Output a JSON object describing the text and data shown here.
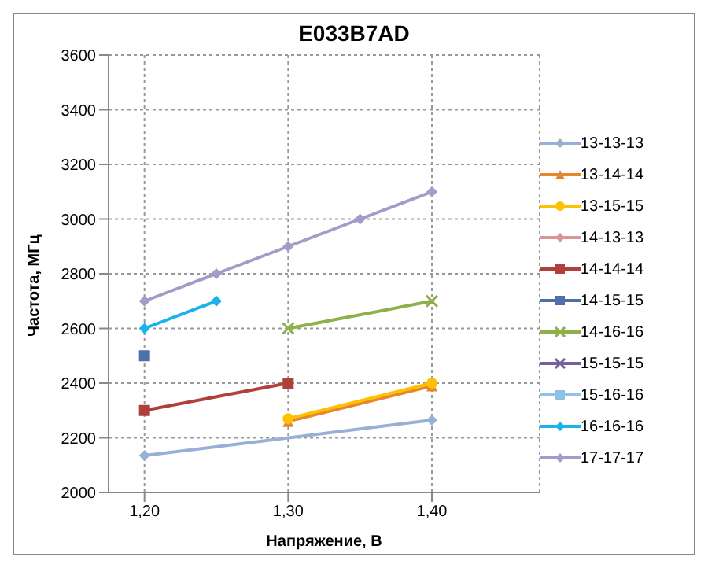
{
  "chart_data": {
    "type": "line",
    "title": "E033B7AD",
    "xlabel": "Напряжение, В",
    "ylabel": "Частота, МГц",
    "xlim": [
      1.175,
      1.475
    ],
    "xticks": [
      {
        "value": 1.2,
        "label": "1,20"
      },
      {
        "value": 1.3,
        "label": "1,30"
      },
      {
        "value": 1.4,
        "label": "1,40"
      }
    ],
    "ylim": [
      2000,
      3600
    ],
    "yticks": [
      2000,
      2200,
      2400,
      2600,
      2800,
      3000,
      3200,
      3400,
      3600
    ],
    "grid": true,
    "legend": "right",
    "series": [
      {
        "name": "13-13-13",
        "color": "#98afd6",
        "marker": "diamond",
        "x": [
          1.2,
          1.4
        ],
        "values": [
          2135,
          2265
        ]
      },
      {
        "name": "13-14-14",
        "color": "#e8862e",
        "marker": "triangle",
        "x": [
          1.3,
          1.4
        ],
        "values": [
          2260,
          2390
        ]
      },
      {
        "name": "13-15-15",
        "color": "#ffc000",
        "marker": "circle",
        "x": [
          1.3,
          1.4
        ],
        "values": [
          2270,
          2400
        ]
      },
      {
        "name": "14-13-13",
        "color": "#d99694",
        "marker": "diamond"
      },
      {
        "name": "14-14-14",
        "color": "#b0403c",
        "marker": "square",
        "x": [
          1.2,
          1.3
        ],
        "values": [
          2300,
          2400
        ]
      },
      {
        "name": "14-15-15",
        "color": "#4f6fa8",
        "marker": "square",
        "x": [
          1.2
        ],
        "values": [
          2500
        ]
      },
      {
        "name": "14-16-16",
        "color": "#8db04a",
        "marker": "cross",
        "x": [
          1.3,
          1.4
        ],
        "values": [
          2600,
          2700
        ]
      },
      {
        "name": "15-15-15",
        "color": "#7a5fa0",
        "marker": "cross"
      },
      {
        "name": "15-16-16",
        "color": "#8fc3e4",
        "marker": "square"
      },
      {
        "name": "16-16-16",
        "color": "#1ab3ec",
        "marker": "diamond",
        "x": [
          1.2,
          1.25
        ],
        "values": [
          2600,
          2700
        ]
      },
      {
        "name": "17-17-17",
        "color": "#a59bc8",
        "marker": "diamond",
        "x": [
          1.2,
          1.25,
          1.3,
          1.35,
          1.4
        ],
        "values": [
          2700,
          2800,
          2900,
          3000,
          3100
        ]
      }
    ]
  }
}
